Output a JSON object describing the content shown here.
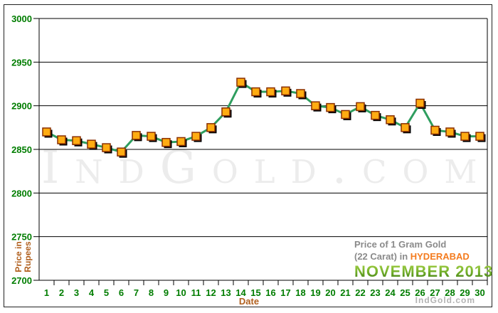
{
  "watermark": {
    "text": "IndGold.com"
  },
  "credit": {
    "text": "IndGold.com"
  },
  "title": {
    "line1": "Price of 1 Gram Gold",
    "line2_prefix": "(22 Carat) in ",
    "city": "HYDERABAD",
    "month_year": "NOVEMBER 2013"
  },
  "axis": {
    "date_label": "Date",
    "ylabel_line1": "Price in",
    "ylabel_line2": "Rupees"
  },
  "chart_data": {
    "type": "line",
    "title": "Price of 1 Gram Gold (22 Carat) in HYDERABAD - NOVEMBER 2013",
    "xlabel": "Date",
    "ylabel": "Price in Rupees",
    "ylim": [
      2700,
      3000
    ],
    "y_ticks": [
      3000,
      2950,
      2900,
      2850,
      2800,
      2750,
      2700
    ],
    "grid": true,
    "legend": "none",
    "x": [
      1,
      2,
      3,
      4,
      5,
      6,
      7,
      8,
      9,
      10,
      11,
      12,
      13,
      14,
      15,
      16,
      17,
      18,
      19,
      20,
      21,
      22,
      23,
      24,
      25,
      26,
      27,
      28,
      29,
      30
    ],
    "values": [
      2870,
      2861,
      2860,
      2856,
      2852,
      2847,
      2866,
      2865,
      2858,
      2859,
      2865,
      2875,
      2893,
      2927,
      2916,
      2916,
      2917,
      2914,
      2900,
      2898,
      2890,
      2899,
      2889,
      2884,
      2875,
      2903,
      2872,
      2870,
      2865,
      2865
    ],
    "colors": {
      "line": "#2f9e5f",
      "marker_fill": "#ffac12",
      "marker_border": "#8a2f00",
      "marker_shadow": "#000000",
      "grid_line": "#000000",
      "tick_label": "#007d00",
      "axis_title": "#b05f1d",
      "city_accent": "#f47b1e",
      "month_green_top": "#a9d24b",
      "month_green_bottom": "#3e7d14",
      "watermark": "#ececec",
      "credit": "#b3b3b3"
    }
  }
}
